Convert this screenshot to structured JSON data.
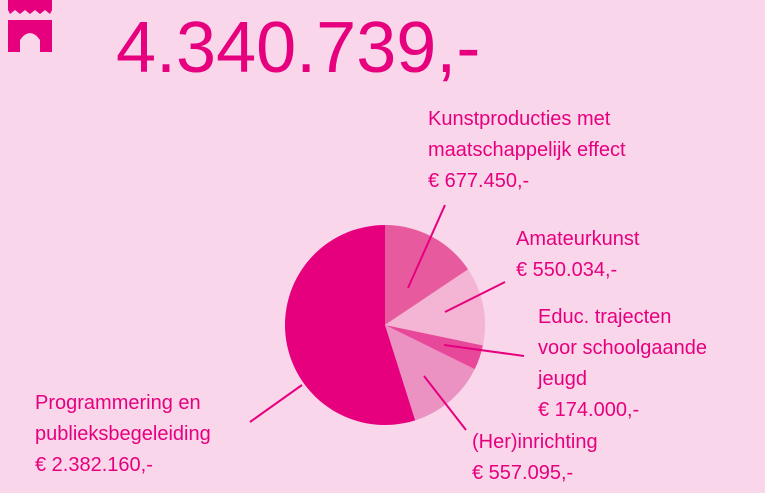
{
  "chart_data": {
    "type": "pie",
    "title": "4.340.739,-",
    "categories": [
      "Kunstproducties met\nmaatschappelijk effect",
      "Amateurkunst",
      "Educ. trajecten\nvoor schoolgaande\njeugd",
      "(Her)inrichting",
      "Programmering en\npublieksbegeleiding"
    ],
    "values": [
      677450,
      550034,
      174000,
      557095,
      2382160
    ],
    "value_labels": [
      "€ 677.450,-",
      "€ 550.034,-",
      "€ 174.000,-",
      "€ 557.095,-",
      "€ 2.382.160,-"
    ],
    "colors": [
      "#e85a9e",
      "#f4b4d3",
      "#e8489a",
      "#ec92c2",
      "#e6007e"
    ]
  }
}
